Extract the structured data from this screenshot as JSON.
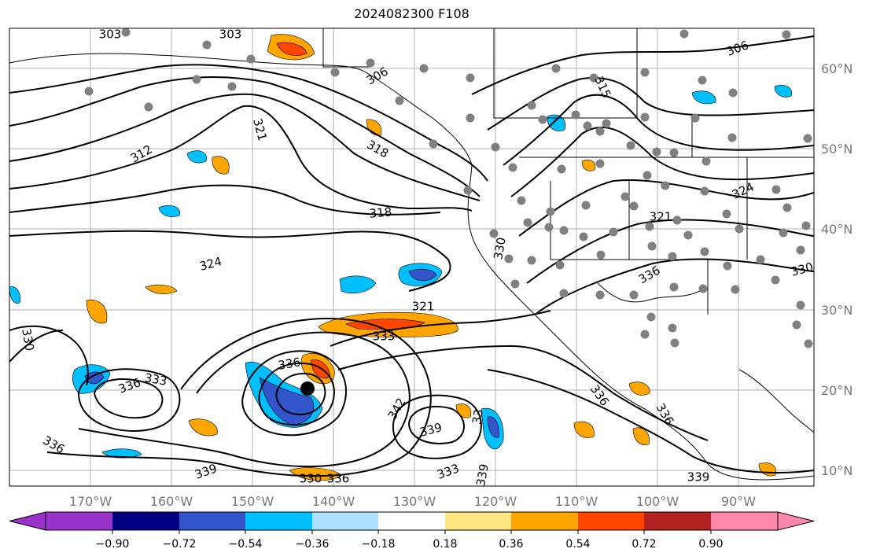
{
  "title": "2024082300 F108",
  "map": {
    "lat_labels": [
      "60°N",
      "50°N",
      "40°N",
      "30°N",
      "20°N",
      "10°N"
    ],
    "lon_labels": [
      "170°W",
      "160°W",
      "150°W",
      "140°W",
      "130°W",
      "120°W",
      "110°W",
      "100°W",
      "90°W"
    ],
    "contour_labels": [
      "303",
      "303",
      "306",
      "306",
      "315",
      "312",
      "321",
      "318",
      "318",
      "324",
      "330",
      "321",
      "324",
      "330",
      "336",
      "336",
      "321",
      "333",
      "330",
      "336",
      "333",
      "339",
      "342",
      "339",
      "336",
      "333",
      "336",
      "339",
      "339",
      "33",
      "336",
      "336",
      "330"
    ],
    "colors": {
      "land_border": "#000000",
      "grid": "#b0b0b0",
      "stations": "#808080",
      "contours": "#000000"
    }
  },
  "colorbar": {
    "ticks": [
      "−0.90",
      "−0.72",
      "−0.54",
      "−0.36",
      "−0.18",
      "0.18",
      "0.36",
      "0.54",
      "0.72",
      "0.90"
    ],
    "colors": [
      "#9933cc",
      "#000080",
      "#3355cc",
      "#00bfff",
      "#b0e2ff",
      "#ffffff",
      "#ffe680",
      "#ffa500",
      "#ff4500",
      "#b22222",
      "#ff88aa"
    ]
  }
}
